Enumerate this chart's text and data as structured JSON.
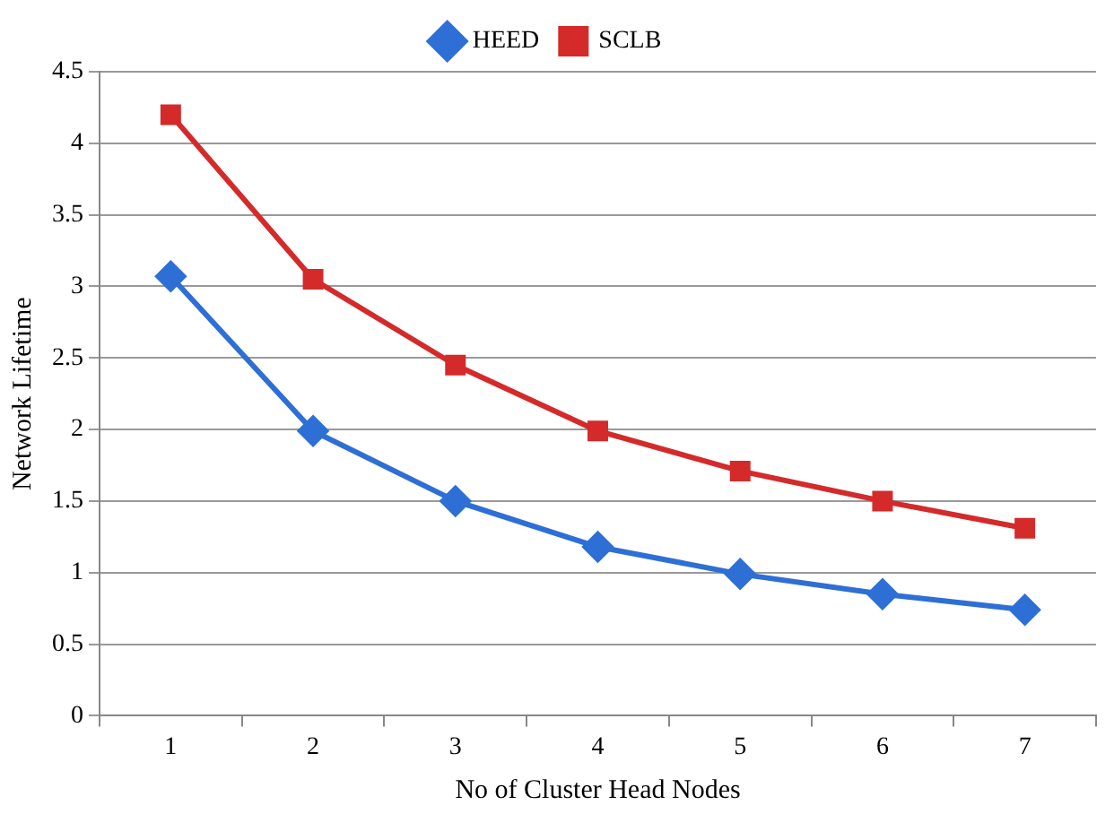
{
  "chart_data": {
    "type": "line",
    "xlabel": "No of Cluster Head Nodes",
    "ylabel": "Network Lifetime",
    "categories": [
      "1",
      "2",
      "3",
      "4",
      "5",
      "6",
      "7"
    ],
    "series": [
      {
        "name": "HEED",
        "color": "#2e6fd6",
        "marker": "diamond",
        "values": [
          3.07,
          1.99,
          1.5,
          1.18,
          0.99,
          0.85,
          0.74
        ]
      },
      {
        "name": "SCLB",
        "color": "#d42a2a",
        "marker": "square",
        "values": [
          4.2,
          3.05,
          2.45,
          1.99,
          1.71,
          1.5,
          1.31
        ]
      }
    ],
    "ylim": [
      0,
      4.5
    ],
    "yticks": [
      0,
      0.5,
      1,
      1.5,
      2,
      2.5,
      3,
      3.5,
      4,
      4.5
    ],
    "grid": "y",
    "legend": "top",
    "line_style": "solid"
  }
}
